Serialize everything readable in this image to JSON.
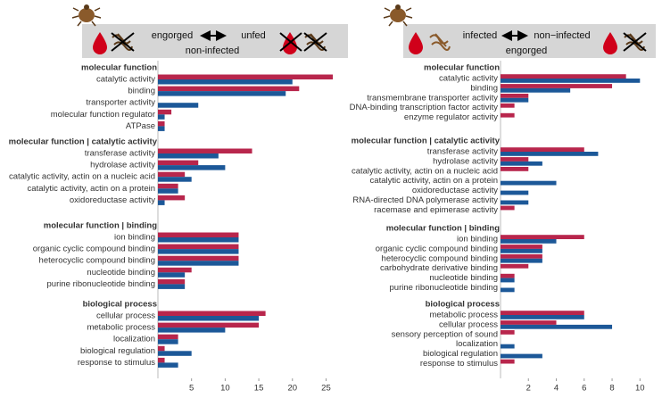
{
  "chart_data": [
    {
      "type": "bar",
      "orientation": "horizontal",
      "header": {
        "left": "engorged",
        "right": "unfed",
        "sub": "non-infected"
      },
      "xlim": [
        0,
        26
      ],
      "xticks": [
        5,
        10,
        15,
        20,
        25
      ],
      "sections": [
        {
          "title": "molecular function",
          "categories": [
            "catalytic activity",
            "binding",
            "transporter activity",
            "molecular function regulator",
            "ATPase"
          ],
          "series": [
            {
              "color": "#b8264c",
              "values": [
                26,
                21,
                null,
                2,
                1
              ]
            },
            {
              "color": "#1c5898",
              "values": [
                20,
                19,
                6,
                1,
                1
              ]
            }
          ]
        },
        {
          "title": "molecular function | catalytic activity",
          "categories": [
            "transferase activity",
            "hydrolase activity",
            "catalytic activity, actin on a nucleic acid",
            "catalytic activity, actin on a protein",
            "oxidoreductase activity"
          ],
          "series": [
            {
              "color": "#b8264c",
              "values": [
                14,
                6,
                4,
                3,
                4
              ]
            },
            {
              "color": "#1c5898",
              "values": [
                9,
                10,
                5,
                3,
                1
              ]
            }
          ]
        },
        {
          "title": "molecular function | binding",
          "categories": [
            "ion binding",
            "organic cyclic compound binding",
            "heterocyclic compound binding",
            "nucleotide binding",
            "purine ribonucleotide binding"
          ],
          "series": [
            {
              "color": "#b8264c",
              "values": [
                12,
                12,
                12,
                5,
                4
              ]
            },
            {
              "color": "#1c5898",
              "values": [
                12,
                12,
                12,
                4,
                4
              ]
            }
          ]
        },
        {
          "title": "biological process",
          "categories": [
            "cellular process",
            "metabolic process",
            "localization",
            "biological regulation",
            "response to stimulus"
          ],
          "series": [
            {
              "color": "#b8264c",
              "values": [
                16,
                15,
                3,
                1,
                1
              ]
            },
            {
              "color": "#1c5898",
              "values": [
                15,
                10,
                3,
                5,
                3
              ]
            }
          ]
        }
      ]
    },
    {
      "type": "bar",
      "orientation": "horizontal",
      "header": {
        "left": "infected",
        "right": "non−infected",
        "sub": "engorged"
      },
      "xlim": [
        0,
        10.3
      ],
      "xticks": [
        2,
        4,
        6,
        8,
        10
      ],
      "sections": [
        {
          "title": "molecular function",
          "categories": [
            "catalytic activity",
            "binding",
            "transmembrane transporter activity",
            "DNA-binding transcription factor activity",
            "enzyme regulator activity"
          ],
          "series": [
            {
              "color": "#b8264c",
              "values": [
                9,
                8,
                2,
                1,
                1
              ]
            },
            {
              "color": "#1c5898",
              "values": [
                10,
                5,
                2,
                null,
                null
              ]
            }
          ]
        },
        {
          "title": "molecular function | catalytic activity",
          "categories": [
            "transferase activity",
            "hydrolase activity",
            "catalytic activity, actin on a nucleic acid",
            "catalytic activity, actin on a protein",
            "oxidoreductase activity",
            "RNA-directed DNA polymerase activity",
            "racemase and epimerase activity"
          ],
          "series": [
            {
              "color": "#b8264c",
              "values": [
                6,
                2,
                2,
                null,
                null,
                null,
                1
              ]
            },
            {
              "color": "#1c5898",
              "values": [
                7,
                3,
                null,
                4,
                2,
                2,
                null
              ]
            }
          ]
        },
        {
          "title": "molecular function | binding",
          "categories": [
            "ion binding",
            "organic cyclic compound binding",
            "heterocyclic compound binding",
            "carbohydrate derivative binding",
            "nucleotide binding",
            "purine ribonucleotide binding"
          ],
          "series": [
            {
              "color": "#b8264c",
              "values": [
                6,
                3,
                3,
                2,
                1,
                null
              ]
            },
            {
              "color": "#1c5898",
              "values": [
                4,
                3,
                3,
                null,
                1,
                1
              ]
            }
          ]
        },
        {
          "title": "biological process",
          "categories": [
            "metabolic process",
            "cellular process",
            "sensory perception of sound",
            "localization",
            "biological regulation",
            "response to stimulus"
          ],
          "series": [
            {
              "color": "#b8264c",
              "values": [
                6,
                4,
                1,
                null,
                null,
                1
              ]
            },
            {
              "color": "#1c5898",
              "values": [
                6,
                8,
                null,
                1,
                3,
                null
              ]
            }
          ]
        }
      ]
    }
  ]
}
